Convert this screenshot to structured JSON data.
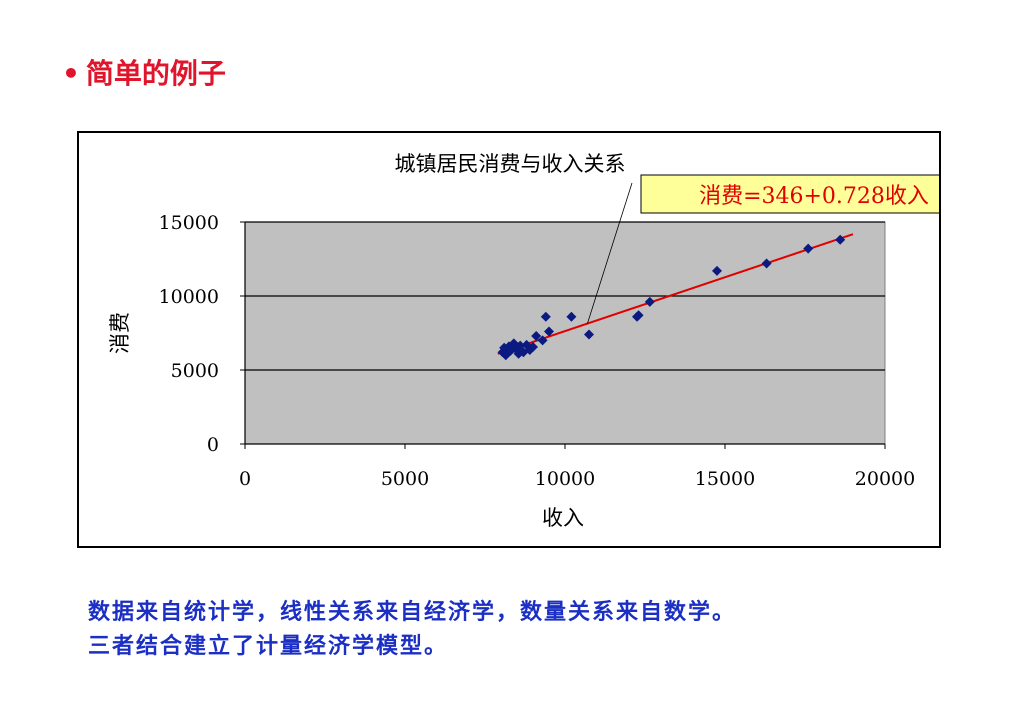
{
  "slide": {
    "bullet": "•",
    "title": "简单的例子"
  },
  "footer": {
    "line1": "数据来自统计学，线性关系来自经济学，数量关系来自数学。",
    "line2": "三者结合建立了计量经济学模型。"
  },
  "colors": {
    "title": "#e0142a",
    "footer": "#1b2fc4",
    "plot_bg": "#c0c0c0",
    "points": "#0a1a80",
    "fit_line": "#e00000",
    "callout_bg": "#ffff99",
    "callout_text": "#e00000"
  },
  "chart_data": {
    "type": "scatter",
    "title": "城镇居民消费与收入关系",
    "xlabel": "收入",
    "ylabel": "消费",
    "xlim": [
      0,
      20000
    ],
    "ylim": [
      0,
      15000
    ],
    "xticks": [
      0,
      5000,
      10000,
      15000,
      20000
    ],
    "yticks": [
      0,
      5000,
      10000,
      15000
    ],
    "grid": "horizontal",
    "points": [
      {
        "x": 8050,
        "y": 6200
      },
      {
        "x": 8100,
        "y": 6500
      },
      {
        "x": 8150,
        "y": 6000
      },
      {
        "x": 8250,
        "y": 6600
      },
      {
        "x": 8300,
        "y": 6300
      },
      {
        "x": 8400,
        "y": 6800
      },
      {
        "x": 8450,
        "y": 6450
      },
      {
        "x": 8550,
        "y": 6100
      },
      {
        "x": 8600,
        "y": 6650
      },
      {
        "x": 8700,
        "y": 6200
      },
      {
        "x": 8800,
        "y": 6700
      },
      {
        "x": 8900,
        "y": 6350
      },
      {
        "x": 9000,
        "y": 6550
      },
      {
        "x": 9100,
        "y": 7300
      },
      {
        "x": 9300,
        "y": 7000
      },
      {
        "x": 9400,
        "y": 8600
      },
      {
        "x": 9500,
        "y": 7600
      },
      {
        "x": 10200,
        "y": 8600
      },
      {
        "x": 10750,
        "y": 7400
      },
      {
        "x": 12250,
        "y": 8600
      },
      {
        "x": 12300,
        "y": 8700
      },
      {
        "x": 12650,
        "y": 9600
      },
      {
        "x": 14750,
        "y": 11700
      },
      {
        "x": 16300,
        "y": 12200
      },
      {
        "x": 17600,
        "y": 13200
      },
      {
        "x": 18600,
        "y": 13800
      }
    ],
    "fit_line": {
      "intercept": 346,
      "slope": 0.728,
      "x_range": [
        7900,
        19000
      ],
      "label": "消费=346+0.728收入"
    }
  }
}
